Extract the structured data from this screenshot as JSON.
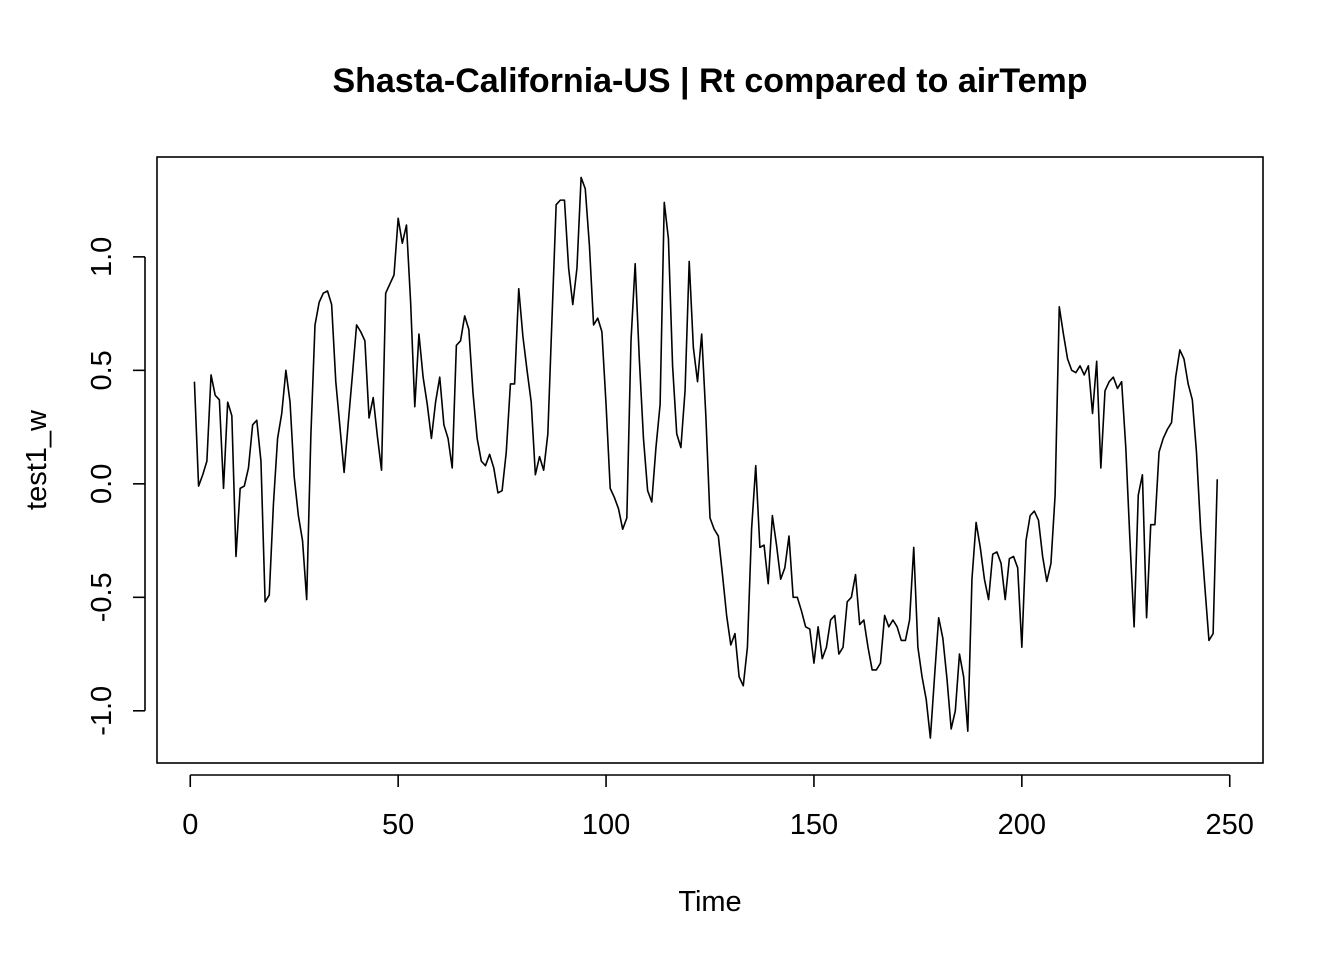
{
  "chart_data": {
    "type": "line",
    "title": "Shasta-California-US | Rt compared to airTemp",
    "xlabel": "Time",
    "ylabel": "test1_w",
    "xlim": [
      -8,
      258
    ],
    "ylim": [
      -1.23,
      1.44
    ],
    "x_ticks": [
      0,
      50,
      100,
      150,
      200,
      250
    ],
    "x_tick_labels": [
      "0",
      "50",
      "100",
      "150",
      "200",
      "250"
    ],
    "y_ticks": [
      -1.0,
      -0.5,
      0.0,
      0.5,
      1.0
    ],
    "y_tick_labels": [
      "-1.0",
      "-0.5",
      "0.0",
      "0.5",
      "1.0"
    ],
    "grid": false,
    "line_color": "#000000",
    "x_start": 1,
    "series": [
      {
        "values": [
          0.45,
          -0.01,
          0.04,
          0.1,
          0.48,
          0.39,
          0.37,
          -0.02,
          0.36,
          0.3,
          -0.32,
          -0.02,
          -0.01,
          0.07,
          0.26,
          0.28,
          0.1,
          -0.52,
          -0.49,
          -0.09,
          0.2,
          0.31,
          0.5,
          0.36,
          0.03,
          -0.14,
          -0.25,
          -0.51,
          0.21,
          0.7,
          0.8,
          0.84,
          0.85,
          0.79,
          0.45,
          0.25,
          0.05,
          0.27,
          0.48,
          0.7,
          0.67,
          0.63,
          0.29,
          0.38,
          0.21,
          0.06,
          0.84,
          0.88,
          0.92,
          1.17,
          1.06,
          1.14,
          0.8,
          0.34,
          0.66,
          0.47,
          0.35,
          0.2,
          0.36,
          0.47,
          0.26,
          0.2,
          0.07,
          0.61,
          0.63,
          0.74,
          0.68,
          0.4,
          0.2,
          0.1,
          0.08,
          0.13,
          0.07,
          -0.04,
          -0.03,
          0.14,
          0.44,
          0.44,
          0.86,
          0.65,
          0.5,
          0.36,
          0.04,
          0.12,
          0.06,
          0.22,
          0.73,
          1.23,
          1.25,
          1.25,
          0.95,
          0.79,
          0.95,
          1.35,
          1.3,
          1.05,
          0.7,
          0.73,
          0.67,
          0.35,
          -0.02,
          -0.06,
          -0.11,
          -0.2,
          -0.15,
          0.63,
          0.97,
          0.55,
          0.2,
          -0.03,
          -0.08,
          0.16,
          0.35,
          1.24,
          1.08,
          0.52,
          0.22,
          0.16,
          0.41,
          0.98,
          0.6,
          0.45,
          0.66,
          0.3,
          -0.15,
          -0.2,
          -0.23,
          -0.4,
          -0.58,
          -0.71,
          -0.66,
          -0.85,
          -0.89,
          -0.72,
          -0.2,
          0.08,
          -0.28,
          -0.27,
          -0.44,
          -0.14,
          -0.27,
          -0.42,
          -0.37,
          -0.23,
          -0.5,
          -0.5,
          -0.56,
          -0.63,
          -0.64,
          -0.79,
          -0.63,
          -0.77,
          -0.72,
          -0.6,
          -0.58,
          -0.75,
          -0.72,
          -0.52,
          -0.5,
          -0.4,
          -0.62,
          -0.6,
          -0.72,
          -0.82,
          -0.82,
          -0.79,
          -0.58,
          -0.63,
          -0.6,
          -0.63,
          -0.69,
          -0.69,
          -0.6,
          -0.28,
          -0.72,
          -0.85,
          -0.95,
          -1.12,
          -0.85,
          -0.59,
          -0.68,
          -0.86,
          -1.08,
          -1.0,
          -0.75,
          -0.85,
          -1.09,
          -0.42,
          -0.17,
          -0.28,
          -0.42,
          -0.51,
          -0.31,
          -0.3,
          -0.35,
          -0.51,
          -0.33,
          -0.32,
          -0.37,
          -0.72,
          -0.25,
          -0.14,
          -0.12,
          -0.16,
          -0.32,
          -0.43,
          -0.35,
          -0.05,
          0.78,
          0.66,
          0.55,
          0.5,
          0.49,
          0.52,
          0.48,
          0.52,
          0.31,
          0.54,
          0.07,
          0.41,
          0.45,
          0.47,
          0.42,
          0.45,
          0.16,
          -0.25,
          -0.63,
          -0.05,
          0.04,
          -0.59,
          -0.18,
          -0.18,
          0.14,
          0.2,
          0.24,
          0.27,
          0.47,
          0.59,
          0.55,
          0.44,
          0.37,
          0.14,
          -0.2,
          -0.45,
          -0.69,
          -0.66,
          0.02
        ]
      }
    ]
  }
}
